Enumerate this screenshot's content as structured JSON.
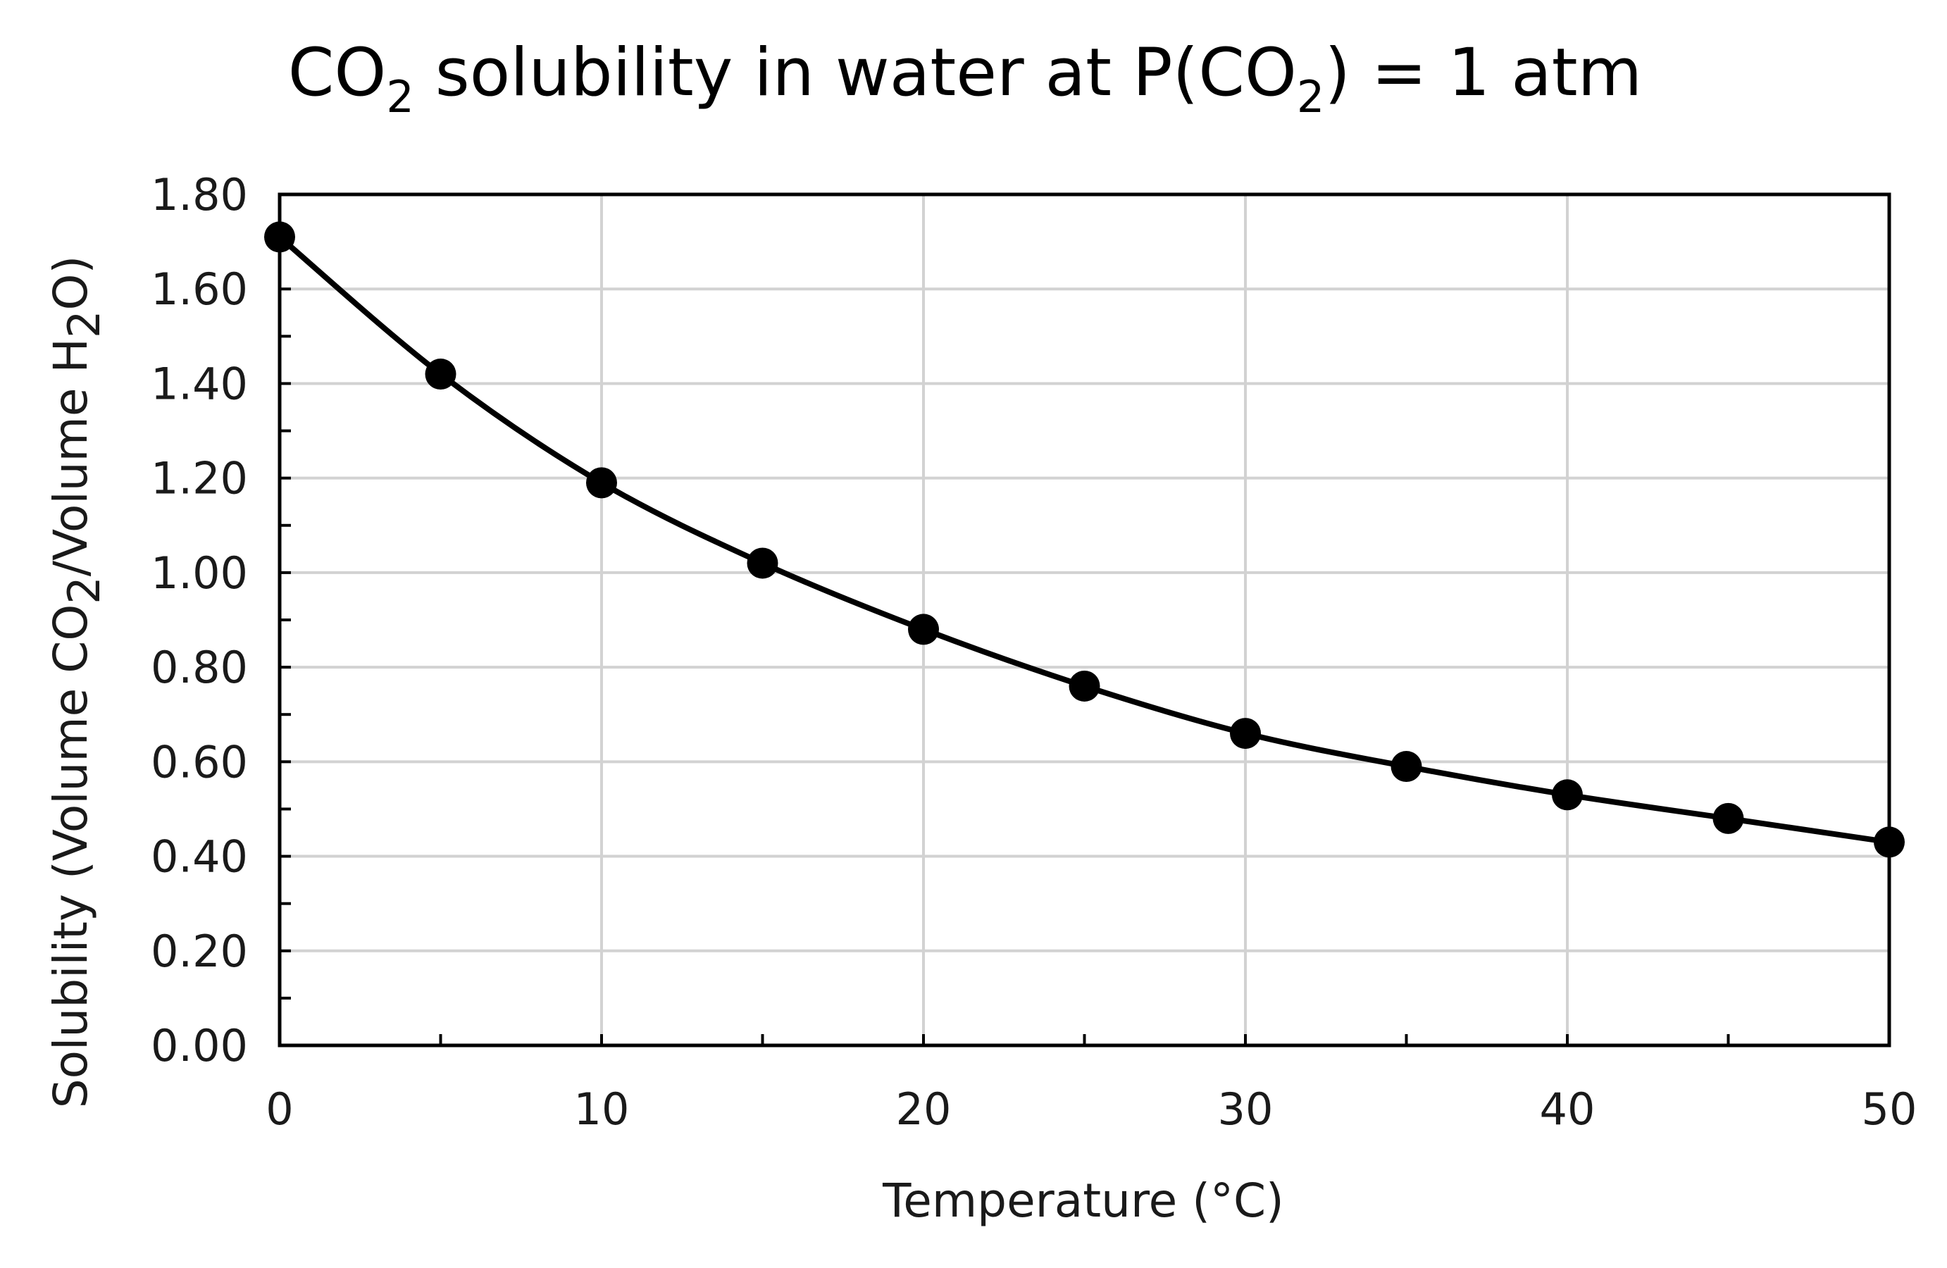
{
  "chart_data": {
    "type": "scatter",
    "title": {
      "part1": "CO",
      "part1_sub": "2",
      "part2": " solubility in water  at P(CO",
      "part2_sub": "2",
      "part3": ") = 1 atm"
    },
    "xlabel": "Temperature (°C)",
    "ylabel": {
      "part1": "Solubility (Volume CO",
      "part1_sub": "2",
      "part2": "/Volume H",
      "part2_sub": "2",
      "part3": "O)"
    },
    "xlim": [
      0,
      50
    ],
    "ylim": [
      0,
      1.8
    ],
    "x_ticks": [
      0,
      10,
      20,
      30,
      40,
      50
    ],
    "x_tick_labels": [
      "0",
      "10",
      "20",
      "30",
      "40",
      "50"
    ],
    "y_ticks": [
      0,
      0.2,
      0.4,
      0.6,
      0.8,
      1.0,
      1.2,
      1.4,
      1.6,
      1.8
    ],
    "y_tick_labels": [
      "0.00",
      "0.20",
      "0.40",
      "0.60",
      "0.80",
      "1.00",
      "1.20",
      "1.40",
      "1.60",
      "1.80"
    ],
    "grid": true,
    "series": [
      {
        "name": "CO2 solubility",
        "line": "smooth",
        "marker": "circle",
        "color": "#000000",
        "x": [
          0,
          5,
          10,
          15,
          20,
          25,
          30,
          35,
          40,
          45,
          50
        ],
        "y": [
          1.71,
          1.42,
          1.19,
          1.02,
          0.88,
          0.76,
          0.66,
          0.59,
          0.53,
          0.48,
          0.43
        ]
      }
    ]
  }
}
